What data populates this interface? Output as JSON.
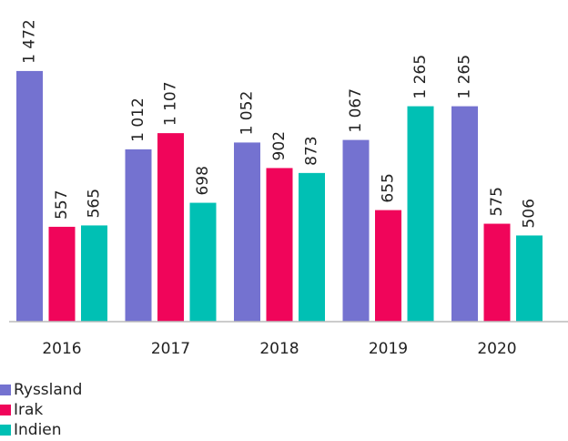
{
  "chart_data": {
    "type": "bar",
    "categories": [
      "2016",
      "2017",
      "2018",
      "2019",
      "2020"
    ],
    "series": [
      {
        "name": "Ryssland",
        "color": "#7472d0",
        "values": [
          1472,
          1012,
          1052,
          1067,
          1265
        ],
        "value_labels": [
          "1 472",
          "1 012",
          "1 052",
          "1 067",
          "1 265"
        ]
      },
      {
        "name": "Irak",
        "color": "#f0055a",
        "values": [
          557,
          1107,
          902,
          655,
          575
        ],
        "value_labels": [
          "557",
          "1 107",
          "902",
          "655",
          "575"
        ]
      },
      {
        "name": "Indien",
        "color": "#00c0b4",
        "values": [
          565,
          698,
          873,
          1265,
          506
        ],
        "value_labels": [
          "565",
          "698",
          "873",
          "1 265",
          "506"
        ]
      }
    ],
    "ylim": [
      0,
      1600
    ],
    "legend": "bottom-left"
  }
}
